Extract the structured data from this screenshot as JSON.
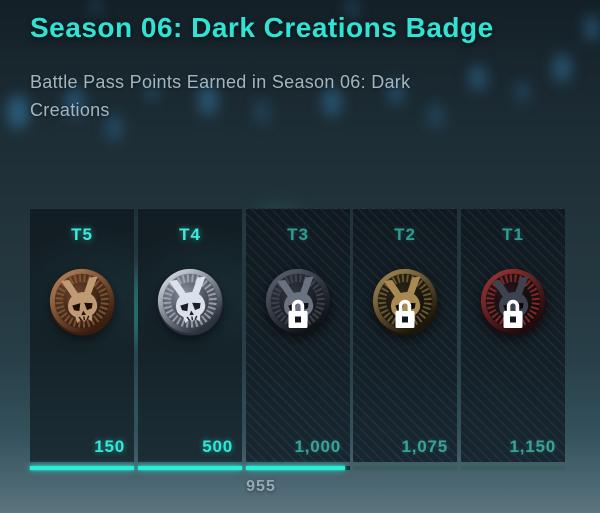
{
  "header": {
    "title": "Season 06: Dark Creations Badge",
    "subtitle": "Battle Pass Points Earned in Season 06: Dark Creations"
  },
  "progress": {
    "current_points": "955"
  },
  "tiers": [
    {
      "label": "T5",
      "requirement": "150",
      "state": "earned",
      "fill": 1,
      "medal": {
        "name": "bronze-medal",
        "rim_light": "#c08a5c",
        "rim_dark": "#3a1d10",
        "face_light": "#6e462c",
        "face_dark": "#201008",
        "ring": "#8a5c3c",
        "emblem": "#c09a74",
        "detail": "#1d0e06"
      }
    },
    {
      "label": "T4",
      "requirement": "500",
      "state": "earned",
      "fill": 1,
      "medal": {
        "name": "silver-medal",
        "rim_light": "#e6ebf2",
        "rim_dark": "#2c323d",
        "face_light": "#8b95a4",
        "face_dark": "#23282f",
        "ring": "#a6afbc",
        "emblem": "#dbe1ea",
        "detail": "#1a1e26"
      }
    },
    {
      "label": "T3",
      "requirement": "1,000",
      "state": "locked",
      "fill": 0.955,
      "medal": {
        "name": "gunmetal-medal",
        "rim_light": "#6a7383",
        "rim_dark": "#101318",
        "face_light": "#363c48",
        "face_dark": "#0e1116",
        "ring": "#4a5260",
        "emblem": "#77808f",
        "detail": "#0c0f14"
      }
    },
    {
      "label": "T2",
      "requirement": "1,075",
      "state": "locked",
      "fill": 0,
      "medal": {
        "name": "gold-medal",
        "rim_light": "#c7a35f",
        "rim_dark": "#1f1606",
        "face_light": "#332a14",
        "face_dark": "#110c04",
        "ring": "#8a703c",
        "emblem": "#c29a55",
        "detail": "#0f0a03"
      }
    },
    {
      "label": "T1",
      "requirement": "1,150",
      "state": "locked",
      "fill": 0,
      "medal": {
        "name": "red-medal",
        "rim_light": "#c43a3a",
        "rim_dark": "#230a0a",
        "face_light": "#2c181c",
        "face_dark": "#0e0507",
        "ring": "#b22f2f",
        "emblem": "#434a58",
        "detail": "#0b0406"
      }
    }
  ],
  "icons": {
    "lock": "lock-icon"
  },
  "colors": {
    "accent": "#2fe8d8",
    "title": "#31e3d5",
    "subtitle": "#a3b6bd",
    "locked_text": "#3aa399",
    "bar_fill": "#2beed6",
    "bar_track_dark": "#13262b",
    "bar_track_muted": "#3c5d60",
    "current_points_text": "#95abb4",
    "bokeh_blue": "#3888be"
  }
}
